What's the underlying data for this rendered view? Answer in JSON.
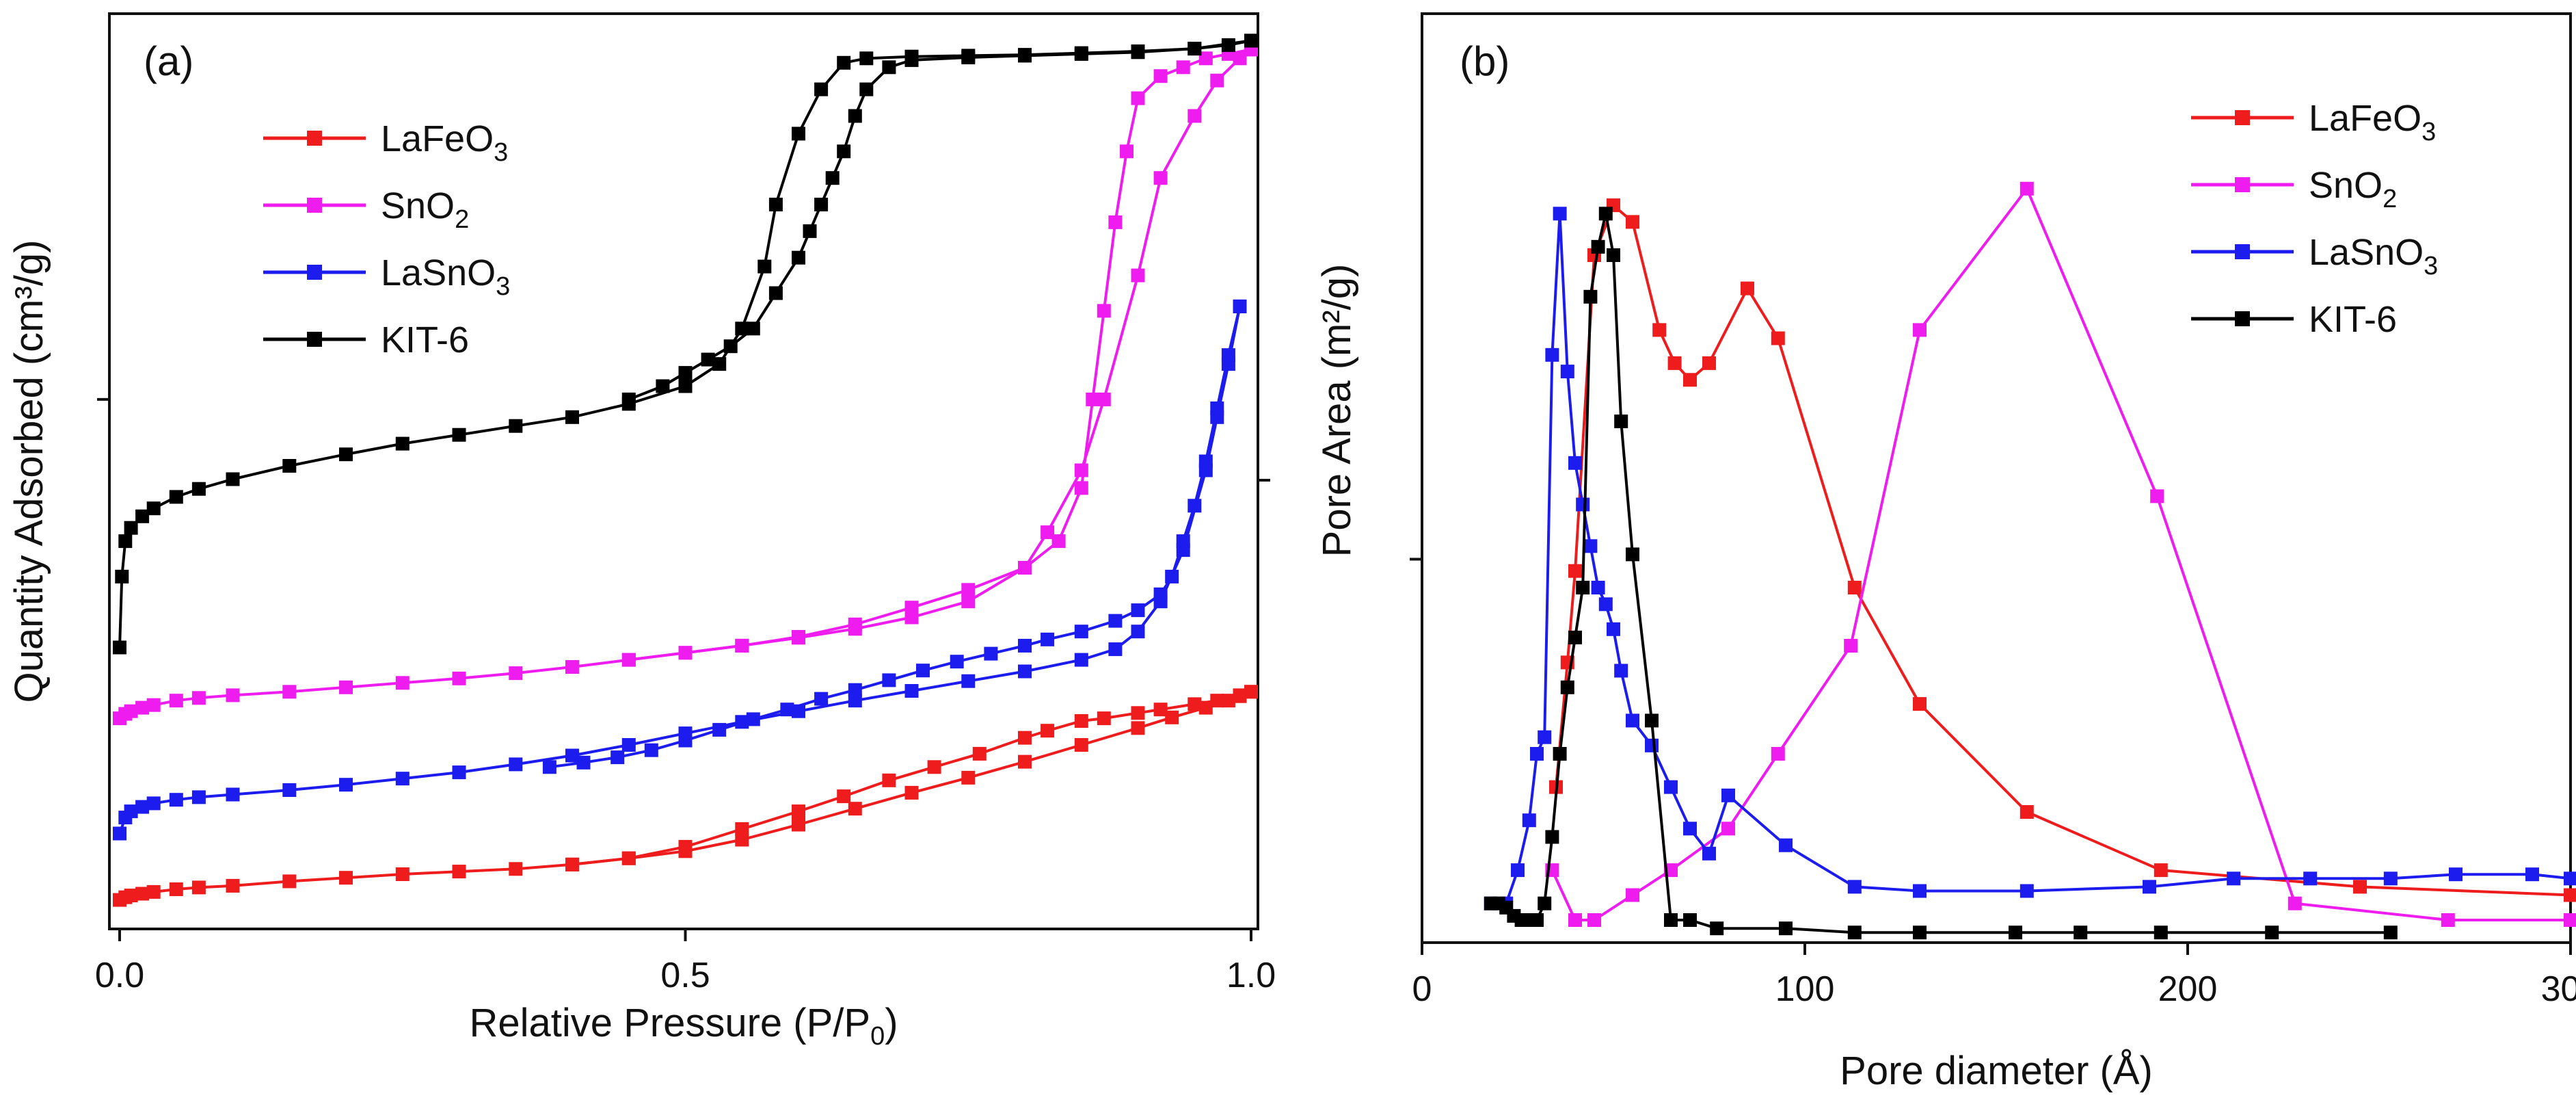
{
  "figure": {
    "panels": [
      {
        "id": "a",
        "panel_label": "(a)",
        "xlabel_main": "Relative Pressure (P/P",
        "xlabel_sub": "0",
        "xlabel_end": ")",
        "ylabel": "Quantity Adsorbed (cm³/g)"
      },
      {
        "id": "b",
        "panel_label": "(b)",
        "xlabel": "Pore diameter (Å)",
        "ylabel": "Pore Area (m²/g)"
      }
    ],
    "legend": [
      {
        "name": "LaFeO3",
        "label_main": "LaFeO",
        "label_sub": "3",
        "color": "#ee1c1c"
      },
      {
        "name": "SnO2",
        "label_main": "SnO",
        "label_sub": "2",
        "color": "#ee1cee"
      },
      {
        "name": "LaSnO3",
        "label_main": "LaSnO",
        "label_sub": "3",
        "color": "#1c1cee"
      },
      {
        "name": "KIT-6",
        "label_main": "KIT-6",
        "label_sub": "",
        "color": "#000000"
      }
    ]
  },
  "chart_data": [
    {
      "type": "line",
      "title": "(a)",
      "xlabel": "Relative Pressure (P/P0)",
      "ylabel": "Quantity Adsorbed (cm³/g)",
      "xlim": [
        0,
        1.0
      ],
      "ylim": [
        0,
        1.0
      ],
      "x_ticks": [
        0.0,
        0.5,
        1.0
      ],
      "x_tick_labels": [
        "0.0",
        "0.5",
        "1.0"
      ],
      "y_ticks": [
        0.58
      ],
      "y_tick_labels": [
        ""
      ],
      "series": [
        {
          "name": "LaFeO3",
          "color": "#ee1c1c",
          "adsorption": {
            "x": [
              0.0,
              0.005,
              0.01,
              0.02,
              0.03,
              0.05,
              0.07,
              0.1,
              0.15,
              0.2,
              0.25,
              0.3,
              0.35,
              0.4,
              0.45,
              0.5,
              0.55,
              0.6,
              0.65,
              0.7,
              0.75,
              0.8,
              0.85,
              0.9,
              0.93,
              0.96,
              0.98,
              0.99,
              1.0
            ],
            "y": [
              0.015,
              0.018,
              0.02,
              0.022,
              0.024,
              0.027,
              0.029,
              0.031,
              0.036,
              0.04,
              0.044,
              0.047,
              0.05,
              0.055,
              0.062,
              0.07,
              0.083,
              0.1,
              0.118,
              0.136,
              0.153,
              0.171,
              0.19,
              0.209,
              0.221,
              0.232,
              0.24,
              0.245,
              0.25
            ]
          },
          "desorption": {
            "x": [
              1.0,
              0.99,
              0.97,
              0.95,
              0.92,
              0.9,
              0.87,
              0.85,
              0.82,
              0.8,
              0.76,
              0.72,
              0.68,
              0.64,
              0.6,
              0.55,
              0.5,
              0.45,
              0.4
            ],
            "y": [
              0.25,
              0.246,
              0.24,
              0.236,
              0.23,
              0.226,
              0.22,
              0.217,
              0.206,
              0.198,
              0.18,
              0.165,
              0.15,
              0.132,
              0.115,
              0.095,
              0.075,
              0.062,
              0.055
            ]
          }
        },
        {
          "name": "SnO2",
          "color": "#ee1cee",
          "adsorption": {
            "x": [
              0.0,
              0.005,
              0.01,
              0.02,
              0.03,
              0.05,
              0.07,
              0.1,
              0.15,
              0.2,
              0.25,
              0.3,
              0.35,
              0.4,
              0.45,
              0.5,
              0.55,
              0.6,
              0.65,
              0.7,
              0.75,
              0.8,
              0.82,
              0.85,
              0.87,
              0.9,
              0.92,
              0.95,
              0.97,
              0.99,
              1.0
            ],
            "y": [
              0.22,
              0.225,
              0.228,
              0.232,
              0.235,
              0.24,
              0.243,
              0.246,
              0.25,
              0.255,
              0.26,
              0.265,
              0.271,
              0.278,
              0.286,
              0.294,
              0.302,
              0.311,
              0.321,
              0.334,
              0.352,
              0.39,
              0.43,
              0.5,
              0.58,
              0.72,
              0.83,
              0.9,
              0.94,
              0.965,
              0.975
            ]
          },
          "desorption": {
            "x": [
              1.0,
              0.98,
              0.96,
              0.94,
              0.92,
              0.9,
              0.89,
              0.88,
              0.87,
              0.86,
              0.85,
              0.83,
              0.8,
              0.75,
              0.7,
              0.65,
              0.6,
              0.55,
              0.5,
              0.45
            ],
            "y": [
              0.975,
              0.97,
              0.965,
              0.955,
              0.945,
              0.92,
              0.86,
              0.78,
              0.68,
              0.58,
              0.48,
              0.42,
              0.39,
              0.365,
              0.345,
              0.326,
              0.312,
              0.302,
              0.294,
              0.286
            ]
          }
        },
        {
          "name": "LaSnO3",
          "color": "#1c1cee",
          "adsorption": {
            "x": [
              0.0,
              0.005,
              0.01,
              0.02,
              0.03,
              0.05,
              0.07,
              0.1,
              0.15,
              0.2,
              0.25,
              0.3,
              0.35,
              0.4,
              0.45,
              0.5,
              0.55,
              0.6,
              0.65,
              0.7,
              0.75,
              0.8,
              0.85,
              0.88,
              0.9,
              0.92,
              0.94,
              0.96,
              0.97,
              0.98,
              0.99
            ],
            "y": [
              0.09,
              0.108,
              0.115,
              0.12,
              0.124,
              0.128,
              0.131,
              0.134,
              0.139,
              0.145,
              0.152,
              0.159,
              0.168,
              0.178,
              0.19,
              0.203,
              0.216,
              0.228,
              0.24,
              0.251,
              0.262,
              0.273,
              0.286,
              0.298,
              0.318,
              0.352,
              0.41,
              0.5,
              0.56,
              0.62,
              0.685
            ]
          },
          "desorption": {
            "x": [
              0.99,
              0.98,
              0.97,
              0.96,
              0.95,
              0.94,
              0.93,
              0.92,
              0.9,
              0.88,
              0.85,
              0.82,
              0.8,
              0.77,
              0.74,
              0.71,
              0.68,
              0.65,
              0.62,
              0.59,
              0.56,
              0.53,
              0.5,
              0.47,
              0.44,
              0.41,
              0.38
            ],
            "y": [
              0.685,
              0.63,
              0.57,
              0.51,
              0.46,
              0.42,
              0.38,
              0.36,
              0.342,
              0.33,
              0.318,
              0.309,
              0.302,
              0.293,
              0.284,
              0.274,
              0.263,
              0.252,
              0.242,
              0.23,
              0.219,
              0.207,
              0.195,
              0.184,
              0.176,
              0.17,
              0.165
            ]
          }
        },
        {
          "name": "KIT-6",
          "color": "#000000",
          "adsorption": {
            "x": [
              0.0,
              0.002,
              0.005,
              0.01,
              0.02,
              0.03,
              0.05,
              0.07,
              0.1,
              0.15,
              0.2,
              0.25,
              0.3,
              0.35,
              0.4,
              0.45,
              0.5,
              0.53,
              0.55,
              0.57,
              0.58,
              0.6,
              0.62,
              0.64,
              0.66,
              0.7,
              0.75,
              0.8,
              0.85,
              0.9,
              0.95,
              0.98,
              1.0
            ],
            "y": [
              0.3,
              0.38,
              0.42,
              0.435,
              0.448,
              0.457,
              0.47,
              0.479,
              0.49,
              0.505,
              0.518,
              0.53,
              0.54,
              0.55,
              0.56,
              0.575,
              0.595,
              0.62,
              0.66,
              0.73,
              0.8,
              0.88,
              0.93,
              0.96,
              0.965,
              0.967,
              0.968,
              0.969,
              0.971,
              0.973,
              0.976,
              0.98,
              0.985
            ]
          },
          "desorption": {
            "x": [
              1.0,
              0.95,
              0.9,
              0.85,
              0.8,
              0.75,
              0.7,
              0.68,
              0.66,
              0.65,
              0.64,
              0.63,
              0.62,
              0.61,
              0.6,
              0.58,
              0.56,
              0.54,
              0.52,
              0.5,
              0.48,
              0.45
            ],
            "y": [
              0.985,
              0.976,
              0.972,
              0.97,
              0.968,
              0.966,
              0.963,
              0.955,
              0.93,
              0.9,
              0.86,
              0.83,
              0.8,
              0.77,
              0.74,
              0.7,
              0.66,
              0.64,
              0.625,
              0.61,
              0.595,
              0.58
            ]
          }
        }
      ]
    },
    {
      "type": "line",
      "title": "(b)",
      "xlabel": "Pore diameter (Å)",
      "ylabel": "Pore Area (m²/g)",
      "xlim": [
        0,
        300
      ],
      "ylim": [
        0,
        1.0
      ],
      "x_ticks": [
        0,
        100,
        200,
        300
      ],
      "x_tick_labels": [
        "0",
        "100",
        "200",
        "300"
      ],
      "y_ticks": [
        0.5
      ],
      "y_tick_labels": [
        ""
      ],
      "series": [
        {
          "name": "LaFeO3",
          "color": "#ee1c1c",
          "x": [
            35,
            38,
            40,
            45,
            50,
            55,
            62,
            66,
            70,
            75,
            85,
            93,
            113,
            130,
            158,
            193,
            245,
            300
          ],
          "y": [
            0.16,
            0.31,
            0.42,
            0.8,
            0.86,
            0.84,
            0.71,
            0.67,
            0.65,
            0.67,
            0.76,
            0.7,
            0.4,
            0.26,
            0.13,
            0.06,
            0.04,
            0.03
          ]
        },
        {
          "name": "SnO2",
          "color": "#ee1cee",
          "x": [
            34,
            40,
            45,
            55,
            65,
            80,
            93,
            112,
            130,
            158,
            192,
            228,
            268,
            300
          ],
          "y": [
            0.06,
            0.0,
            0.0,
            0.03,
            0.06,
            0.11,
            0.2,
            0.33,
            0.71,
            0.88,
            0.51,
            0.02,
            0.0,
            0.0
          ]
        },
        {
          "name": "LaSnO3",
          "color": "#1c1cee",
          "x": [
            18,
            22,
            25,
            28,
            30,
            32,
            34,
            36,
            38,
            40,
            42,
            44,
            46,
            48,
            50,
            52,
            55,
            60,
            65,
            70,
            75,
            80,
            95,
            113,
            130,
            158,
            190,
            212,
            232,
            253,
            270,
            290,
            300
          ],
          "y": [
            0.02,
            0.02,
            0.06,
            0.12,
            0.2,
            0.22,
            0.68,
            0.85,
            0.66,
            0.55,
            0.5,
            0.45,
            0.4,
            0.38,
            0.35,
            0.3,
            0.24,
            0.21,
            0.16,
            0.11,
            0.08,
            0.15,
            0.09,
            0.04,
            0.035,
            0.035,
            0.04,
            0.05,
            0.05,
            0.05,
            0.055,
            0.055,
            0.05
          ]
        },
        {
          "name": "KIT-6",
          "color": "#000000",
          "x": [
            18,
            20,
            22,
            24,
            26,
            28,
            30,
            32,
            34,
            36,
            38,
            40,
            42,
            44,
            46,
            48,
            50,
            52,
            55,
            60,
            65,
            70,
            77,
            95,
            113,
            130,
            155,
            172,
            193,
            222,
            253
          ],
          "y": [
            0.02,
            0.02,
            0.015,
            0.005,
            0.0,
            0.0,
            0.0,
            0.02,
            0.1,
            0.2,
            0.28,
            0.34,
            0.4,
            0.75,
            0.81,
            0.85,
            0.8,
            0.6,
            0.44,
            0.24,
            0.0,
            0.0,
            -0.01,
            -0.01,
            -0.015,
            -0.015,
            -0.015,
            -0.015,
            -0.015,
            -0.015,
            -0.015
          ]
        }
      ]
    }
  ]
}
